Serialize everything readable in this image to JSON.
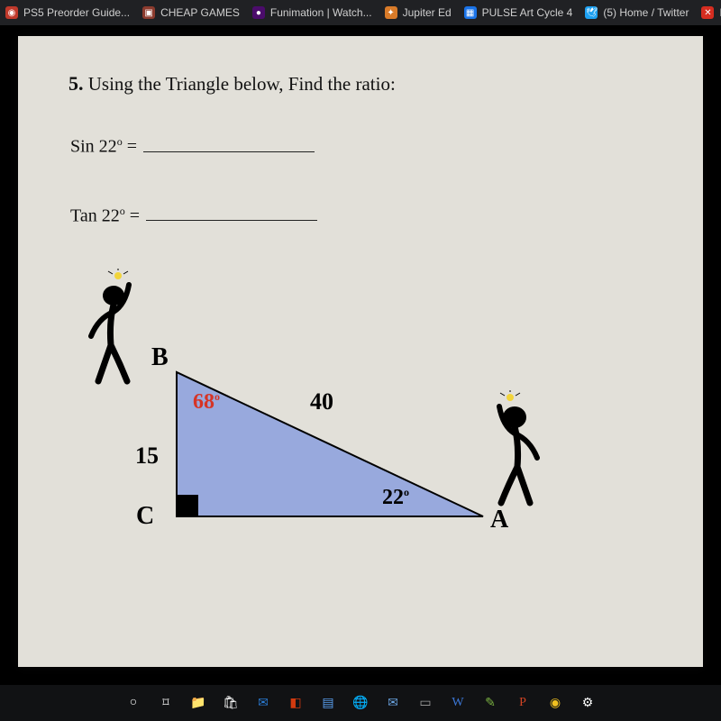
{
  "bookmarks": [
    {
      "icon": "◉",
      "icon_bg": "#c0392b",
      "label": "PS5 Preorder Guide..."
    },
    {
      "icon": "▣",
      "icon_bg": "#8c3b2e",
      "label": "CHEAP GAMES"
    },
    {
      "icon": "●",
      "icon_bg": "#4b0c6b",
      "label": "Funimation | Watch..."
    },
    {
      "icon": "✦",
      "icon_bg": "#d97b29",
      "label": "Jupiter Ed"
    },
    {
      "icon": "▦",
      "icon_bg": "#1a73e8",
      "label": "PULSE Art Cycle 4"
    },
    {
      "icon": "🕊",
      "icon_bg": "#1da1f2",
      "label": "(5) Home / Twitter"
    },
    {
      "icon": "✕",
      "icon_bg": "#d62d20",
      "label": "Ed"
    }
  ],
  "question": {
    "number": "5.",
    "text": "Using the Triangle below, Find the ratio:",
    "sin_label": "Sin 22",
    "tan_label": "Tan 22",
    "degree": "o",
    "equals": " ="
  },
  "triangle": {
    "type": "right-triangle-diagram",
    "vertices": {
      "B": "B",
      "C": "C",
      "A": "A"
    },
    "sides": {
      "BC": "15",
      "BA": "40"
    },
    "angles": {
      "B": {
        "value": "68",
        "deg": "o",
        "color": "#d63426"
      },
      "A": {
        "value": "22",
        "deg": "o",
        "color": "#000000"
      }
    },
    "fill_color": "#98a9dd",
    "stroke_color": "#000000",
    "right_angle_fill": "#000000",
    "background": "#e2e0d9"
  },
  "taskbar_icons": [
    {
      "glyph": "○",
      "color": "#ffffff"
    },
    {
      "glyph": "⌑",
      "color": "#ffffff"
    },
    {
      "glyph": "📁",
      "color": "#e0b040"
    },
    {
      "glyph": "🛍",
      "color": "#ffffff"
    },
    {
      "glyph": "✉",
      "color": "#2a7bd4"
    },
    {
      "glyph": "◧",
      "color": "#d23a0f"
    },
    {
      "glyph": "▤",
      "color": "#5aa0f0"
    },
    {
      "glyph": "🌐",
      "color": "#3ca5e6"
    },
    {
      "glyph": "✉",
      "color": "#6aa3e0"
    },
    {
      "glyph": "▭",
      "color": "#a0a0a0"
    },
    {
      "glyph": "W",
      "color": "#3c78d8"
    },
    {
      "glyph": "✎",
      "color": "#7cb342"
    },
    {
      "glyph": "P",
      "color": "#d14424"
    },
    {
      "glyph": "◉",
      "color": "#f0c020"
    },
    {
      "glyph": "⚙",
      "color": "#ffffff"
    }
  ]
}
